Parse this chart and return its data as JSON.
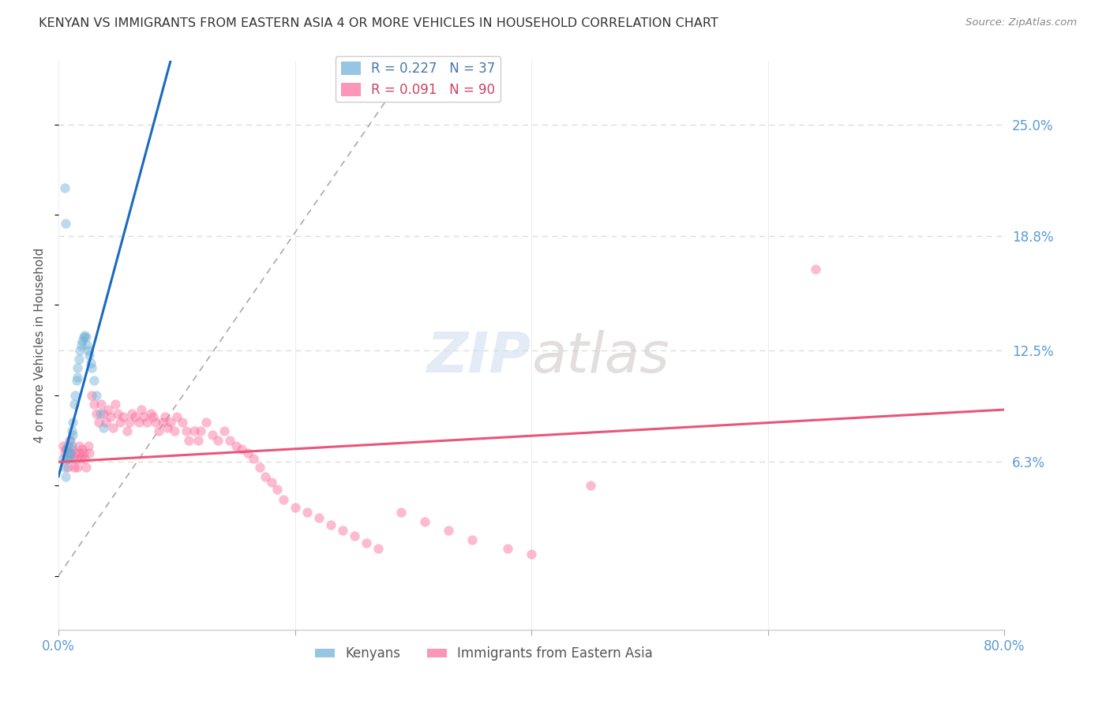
{
  "title": "KENYAN VS IMMIGRANTS FROM EASTERN ASIA 4 OR MORE VEHICLES IN HOUSEHOLD CORRELATION CHART",
  "source": "Source: ZipAtlas.com",
  "ylabel": "4 or more Vehicles in Household",
  "ytick_labels": [
    "25.0%",
    "18.8%",
    "12.5%",
    "6.3%"
  ],
  "ytick_values": [
    0.25,
    0.188,
    0.125,
    0.063
  ],
  "xlim": [
    0.0,
    0.8
  ],
  "ylim": [
    -0.03,
    0.285
  ],
  "legend_entries": [
    {
      "label": "R = 0.227   N = 37",
      "color": "#6baed6"
    },
    {
      "label": "R = 0.091   N = 90",
      "color": "#fb6a9a"
    }
  ],
  "bottom_legend": [
    "Kenyans",
    "Immigrants from Eastern Asia"
  ],
  "kenyan_x": [
    0.004,
    0.005,
    0.006,
    0.007,
    0.007,
    0.008,
    0.008,
    0.009,
    0.01,
    0.01,
    0.011,
    0.011,
    0.012,
    0.012,
    0.013,
    0.014,
    0.015,
    0.016,
    0.016,
    0.017,
    0.018,
    0.019,
    0.02,
    0.021,
    0.022,
    0.023,
    0.024,
    0.025,
    0.026,
    0.027,
    0.028,
    0.03,
    0.032,
    0.035,
    0.038,
    0.005,
    0.006
  ],
  "kenyan_y": [
    0.065,
    0.06,
    0.055,
    0.07,
    0.065,
    0.072,
    0.068,
    0.065,
    0.075,
    0.068,
    0.08,
    0.072,
    0.085,
    0.078,
    0.095,
    0.1,
    0.108,
    0.11,
    0.115,
    0.12,
    0.125,
    0.128,
    0.13,
    0.132,
    0.133,
    0.132,
    0.128,
    0.125,
    0.122,
    0.118,
    0.115,
    0.108,
    0.1,
    0.09,
    0.082,
    0.215,
    0.195
  ],
  "eastern_asia_x": [
    0.004,
    0.005,
    0.006,
    0.007,
    0.008,
    0.009,
    0.01,
    0.011,
    0.012,
    0.013,
    0.014,
    0.015,
    0.016,
    0.017,
    0.018,
    0.019,
    0.02,
    0.021,
    0.022,
    0.023,
    0.025,
    0.026,
    0.028,
    0.03,
    0.032,
    0.034,
    0.036,
    0.038,
    0.04,
    0.042,
    0.044,
    0.046,
    0.048,
    0.05,
    0.052,
    0.055,
    0.058,
    0.06,
    0.062,
    0.065,
    0.068,
    0.07,
    0.072,
    0.075,
    0.078,
    0.08,
    0.082,
    0.085,
    0.088,
    0.09,
    0.092,
    0.095,
    0.098,
    0.1,
    0.105,
    0.108,
    0.11,
    0.115,
    0.118,
    0.12,
    0.125,
    0.13,
    0.135,
    0.14,
    0.145,
    0.15,
    0.155,
    0.16,
    0.165,
    0.17,
    0.175,
    0.18,
    0.185,
    0.19,
    0.2,
    0.21,
    0.22,
    0.23,
    0.24,
    0.25,
    0.26,
    0.27,
    0.29,
    0.31,
    0.33,
    0.35,
    0.38,
    0.4,
    0.45,
    0.64
  ],
  "eastern_asia_y": [
    0.072,
    0.068,
    0.07,
    0.065,
    0.06,
    0.075,
    0.068,
    0.07,
    0.065,
    0.06,
    0.068,
    0.065,
    0.06,
    0.072,
    0.068,
    0.065,
    0.07,
    0.068,
    0.065,
    0.06,
    0.072,
    0.068,
    0.1,
    0.095,
    0.09,
    0.085,
    0.095,
    0.09,
    0.085,
    0.092,
    0.088,
    0.082,
    0.095,
    0.09,
    0.085,
    0.088,
    0.08,
    0.085,
    0.09,
    0.088,
    0.085,
    0.092,
    0.088,
    0.085,
    0.09,
    0.088,
    0.085,
    0.08,
    0.085,
    0.088,
    0.082,
    0.085,
    0.08,
    0.088,
    0.085,
    0.08,
    0.075,
    0.08,
    0.075,
    0.08,
    0.085,
    0.078,
    0.075,
    0.08,
    0.075,
    0.072,
    0.07,
    0.068,
    0.065,
    0.06,
    0.055,
    0.052,
    0.048,
    0.042,
    0.038,
    0.035,
    0.032,
    0.028,
    0.025,
    0.022,
    0.018,
    0.015,
    0.035,
    0.03,
    0.025,
    0.02,
    0.015,
    0.012,
    0.05,
    0.17
  ],
  "kenyan_color": "#6baed6",
  "eastern_asia_color": "#fb6a9a",
  "kenyan_line_color": "#1a6bbf",
  "eastern_asia_line_color": "#e8567a",
  "dashed_line_color": "#aaaaaa",
  "background_color": "#ffffff",
  "grid_color": "#dddddd",
  "title_color": "#333333",
  "right_axis_label_color": "#5b9bd5",
  "bottom_axis_label_color": "#5b9bd5",
  "marker_size": 80,
  "marker_alpha": 0.45,
  "figsize": [
    14.06,
    8.92
  ],
  "dpi": 100
}
